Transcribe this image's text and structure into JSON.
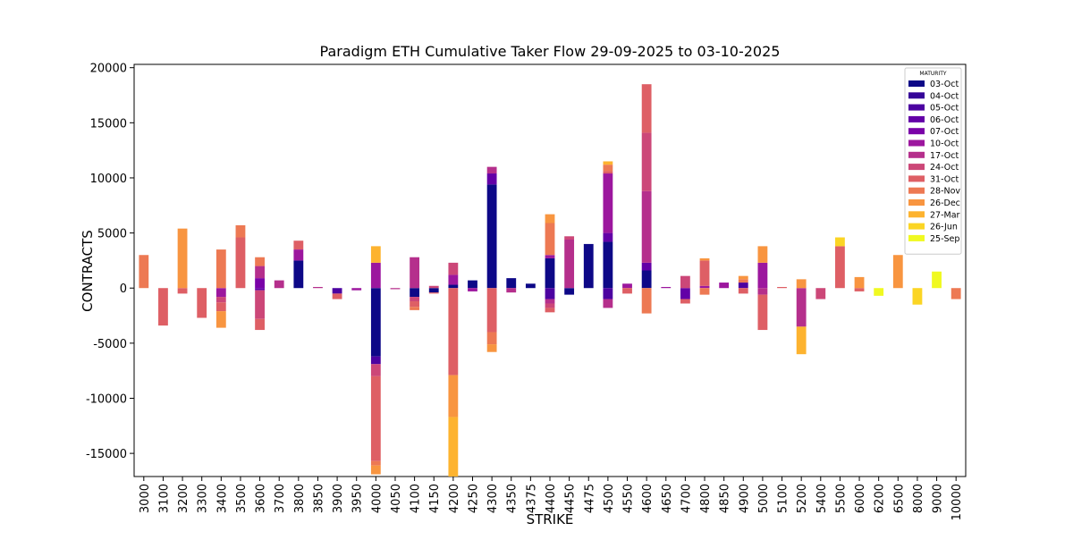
{
  "chart_data": {
    "type": "stacked_bar",
    "title": "Paradigm ETH Cumulative Taker Flow 29-09-2025 to 03-10-2025",
    "x_label": "STRIKE",
    "y_label": "CONTRACTS",
    "legend_title": "MATURITY",
    "legend": "upper right",
    "categories": [
      "3000",
      "3100",
      "3200",
      "3300",
      "3400",
      "3500",
      "3600",
      "3700",
      "3800",
      "3850",
      "3900",
      "3950",
      "4000",
      "4050",
      "4100",
      "4150",
      "4200",
      "4250",
      "4300",
      "4350",
      "4375",
      "4400",
      "4450",
      "4475",
      "4500",
      "4550",
      "4600",
      "4650",
      "4700",
      "4800",
      "4850",
      "4900",
      "5000",
      "5100",
      "5200",
      "5400",
      "5500",
      "6000",
      "6200",
      "6500",
      "8000",
      "9000",
      "10000"
    ],
    "ylim": [
      -17100,
      20300
    ],
    "yticks": [
      -15000,
      -10000,
      -5000,
      0,
      5000,
      10000,
      15000,
      20000
    ],
    "series": [
      {
        "name": "03-Oct",
        "color": "#0d0887",
        "values": [
          0,
          0,
          0,
          0,
          0,
          0,
          0,
          0,
          2500,
          0,
          0,
          0,
          -6200,
          0,
          -800,
          -400,
          300,
          700,
          9400,
          900,
          400,
          2700,
          -600,
          4000,
          4200,
          0,
          1600,
          0,
          0,
          0,
          0,
          0,
          0,
          0,
          0,
          0,
          0,
          0,
          0,
          0,
          0,
          0,
          0
        ]
      },
      {
        "name": "04-Oct",
        "color": "#350498",
        "values": [
          0,
          0,
          0,
          0,
          0,
          0,
          0,
          0,
          0,
          0,
          0,
          0,
          0,
          0,
          0,
          0,
          0,
          0,
          0,
          0,
          0,
          0,
          0,
          0,
          0,
          0,
          0,
          0,
          0,
          0,
          0,
          0,
          0,
          0,
          0,
          0,
          0,
          0,
          0,
          0,
          0,
          0,
          0
        ]
      },
      {
        "name": "05-Oct",
        "color": "#4c02a1",
        "values": [
          0,
          0,
          0,
          0,
          0,
          0,
          0,
          0,
          0,
          0,
          -500,
          0,
          -700,
          0,
          0,
          0,
          0,
          0,
          0,
          0,
          0,
          -1000,
          0,
          0,
          -1000,
          0,
          0,
          0,
          0,
          0,
          0,
          500,
          0,
          0,
          0,
          0,
          0,
          0,
          0,
          0,
          0,
          0,
          0
        ]
      },
      {
        "name": "06-Oct",
        "color": "#6300a7",
        "values": [
          0,
          0,
          0,
          0,
          0,
          0,
          -200,
          0,
          0,
          0,
          0,
          0,
          0,
          0,
          0,
          0,
          0,
          0,
          1000,
          0,
          0,
          0,
          0,
          0,
          800,
          0,
          700,
          0,
          -1000,
          0,
          0,
          0,
          0,
          0,
          0,
          0,
          0,
          0,
          0,
          0,
          0,
          0,
          0
        ]
      },
      {
        "name": "07-Oct",
        "color": "#7a02a8",
        "values": [
          0,
          0,
          0,
          0,
          0,
          0,
          900,
          0,
          0,
          0,
          0,
          0,
          0,
          0,
          0,
          0,
          0,
          0,
          0,
          0,
          0,
          0,
          0,
          0,
          0,
          0,
          0,
          0,
          0,
          0,
          0,
          0,
          0,
          0,
          0,
          0,
          0,
          0,
          0,
          0,
          0,
          0,
          0
        ]
      },
      {
        "name": "10-Oct",
        "color": "#9c179e",
        "values": [
          0,
          0,
          0,
          0,
          -800,
          0,
          0,
          0,
          1000,
          0,
          0,
          -200,
          2300,
          0,
          0,
          0,
          900,
          -300,
          0,
          0,
          0,
          300,
          0,
          0,
          5400,
          400,
          0,
          100,
          0,
          200,
          500,
          0,
          2300,
          0,
          0,
          0,
          0,
          0,
          0,
          0,
          0,
          0,
          0
        ]
      },
      {
        "name": "17-Oct",
        "color": "#b52f8c",
        "values": [
          0,
          0,
          0,
          0,
          0,
          0,
          1100,
          700,
          0,
          100,
          0,
          0,
          0,
          -100,
          2800,
          0,
          0,
          0,
          600,
          -400,
          0,
          -400,
          4400,
          0,
          -800,
          0,
          6500,
          0,
          0,
          0,
          0,
          0,
          -600,
          0,
          -3500,
          0,
          0,
          0,
          0,
          0,
          0,
          0,
          0
        ]
      },
      {
        "name": "24-Oct",
        "color": "#cc4778",
        "values": [
          0,
          0,
          0,
          0,
          -500,
          0,
          -2600,
          0,
          0,
          0,
          0,
          0,
          -1100,
          0,
          -400,
          200,
          1100,
          0,
          0,
          0,
          0,
          -400,
          300,
          0,
          0,
          0,
          5300,
          0,
          1100,
          0,
          0,
          0,
          0,
          0,
          0,
          -1000,
          0,
          0,
          0,
          0,
          0,
          0,
          0
        ]
      },
      {
        "name": "31-Oct",
        "color": "#de5f65",
        "values": [
          0,
          -3400,
          -500,
          -2700,
          -800,
          4600,
          -1000,
          0,
          800,
          0,
          -500,
          0,
          -7700,
          0,
          -500,
          -100,
          -7900,
          0,
          -4000,
          0,
          0,
          -400,
          0,
          0,
          200,
          -500,
          4400,
          0,
          -400,
          2300,
          0,
          -500,
          -3200,
          100,
          0,
          0,
          3800,
          -300,
          0,
          0,
          0,
          0,
          0
        ]
      },
      {
        "name": "28-Nov",
        "color": "#ed7953",
        "values": [
          3000,
          0,
          0,
          0,
          3500,
          1100,
          800,
          0,
          0,
          0,
          0,
          0,
          -400,
          0,
          -300,
          0,
          0,
          0,
          -1100,
          0,
          0,
          2900,
          0,
          0,
          600,
          0,
          -2300,
          0,
          0,
          -600,
          0,
          300,
          0,
          0,
          0,
          0,
          0,
          0,
          0,
          0,
          0,
          0,
          -1000
        ]
      },
      {
        "name": "26-Dec",
        "color": "#f89540",
        "values": [
          0,
          0,
          5400,
          0,
          -1500,
          0,
          0,
          0,
          0,
          0,
          0,
          0,
          -800,
          0,
          0,
          0,
          -3800,
          0,
          -700,
          0,
          0,
          800,
          0,
          0,
          0,
          0,
          0,
          0,
          0,
          200,
          0,
          300,
          1500,
          0,
          800,
          0,
          0,
          1000,
          0,
          3000,
          0,
          0,
          0
        ]
      },
      {
        "name": "27-Mar",
        "color": "#fdb32f",
        "values": [
          0,
          0,
          0,
          0,
          0,
          0,
          0,
          0,
          0,
          0,
          0,
          0,
          1500,
          0,
          0,
          0,
          -5500,
          0,
          0,
          0,
          0,
          0,
          0,
          0,
          300,
          0,
          0,
          0,
          0,
          0,
          0,
          0,
          0,
          0,
          -2500,
          0,
          0,
          0,
          0,
          0,
          0,
          0,
          0
        ]
      },
      {
        "name": "26-Jun",
        "color": "#fbd524",
        "values": [
          0,
          0,
          0,
          0,
          0,
          0,
          0,
          0,
          0,
          0,
          0,
          0,
          0,
          0,
          0,
          0,
          0,
          0,
          0,
          0,
          0,
          0,
          0,
          0,
          0,
          0,
          0,
          0,
          0,
          0,
          0,
          0,
          0,
          0,
          0,
          0,
          800,
          0,
          0,
          0,
          -1500,
          0,
          0
        ]
      },
      {
        "name": "25-Sep",
        "color": "#f0f921",
        "values": [
          0,
          0,
          0,
          0,
          0,
          0,
          0,
          0,
          0,
          0,
          0,
          0,
          0,
          0,
          0,
          0,
          0,
          0,
          0,
          0,
          0,
          0,
          0,
          0,
          0,
          0,
          0,
          0,
          0,
          0,
          0,
          0,
          0,
          0,
          0,
          0,
          0,
          0,
          -700,
          0,
          0,
          1500,
          0
        ]
      }
    ]
  }
}
